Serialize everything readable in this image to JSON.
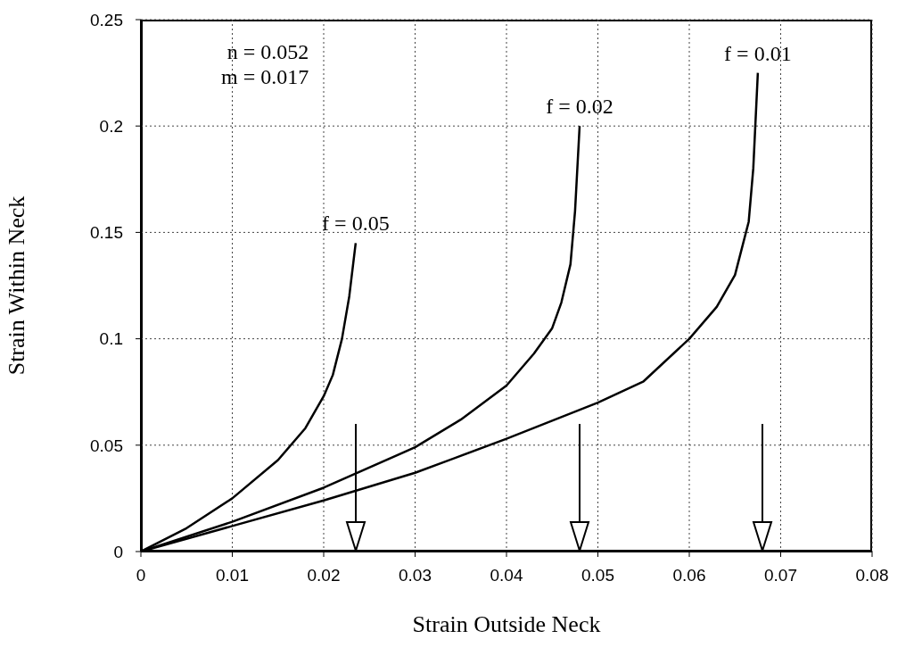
{
  "chart_data": {
    "type": "line",
    "xlabel": "Strain Outside Neck",
    "ylabel": "Strain Within Neck",
    "xlim": [
      0,
      0.08
    ],
    "xticks": [
      0,
      0.01,
      0.02,
      0.03,
      0.04,
      0.05,
      0.06,
      0.07,
      0.08
    ],
    "ylim": [
      0,
      0.25
    ],
    "yticks": [
      0,
      0.05,
      0.1,
      0.15,
      0.2,
      0.25
    ],
    "grid": true,
    "marker": "none",
    "line_style": "solid",
    "series": [
      {
        "color": "#000000",
        "x": [
          0,
          0.005,
          0.01,
          0.015,
          0.018,
          0.02,
          0.021,
          0.022,
          0.0228,
          0.0235
        ],
        "values": [
          0,
          0.011,
          0.025,
          0.043,
          0.058,
          0.073,
          0.083,
          0.1,
          0.12,
          0.145
        ]
      },
      {
        "color": "#000000",
        "x": [
          0,
          0.01,
          0.02,
          0.03,
          0.035,
          0.04,
          0.043,
          0.045,
          0.046,
          0.047,
          0.0475,
          0.048
        ],
        "values": [
          0,
          0.014,
          0.03,
          0.049,
          0.062,
          0.078,
          0.093,
          0.105,
          0.117,
          0.135,
          0.16,
          0.2
        ]
      },
      {
        "color": "#000000",
        "x": [
          0,
          0.01,
          0.02,
          0.03,
          0.04,
          0.05,
          0.055,
          0.06,
          0.063,
          0.065,
          0.0665,
          0.067,
          0.0675
        ],
        "values": [
          0,
          0.012,
          0.024,
          0.037,
          0.053,
          0.07,
          0.08,
          0.1,
          0.115,
          0.13,
          0.155,
          0.18,
          0.225
        ]
      }
    ],
    "annotations": [
      "n = 0.052",
      "m = 0.017",
      {
        "text": "f = 0.05",
        "x": 0.0235,
        "y": 0.145
      },
      {
        "text": "f = 0.02",
        "x": 0.048,
        "y": 0.2
      },
      {
        "text": "f = 0.01",
        "x": 0.0675,
        "y": 0.225
      }
    ]
  }
}
